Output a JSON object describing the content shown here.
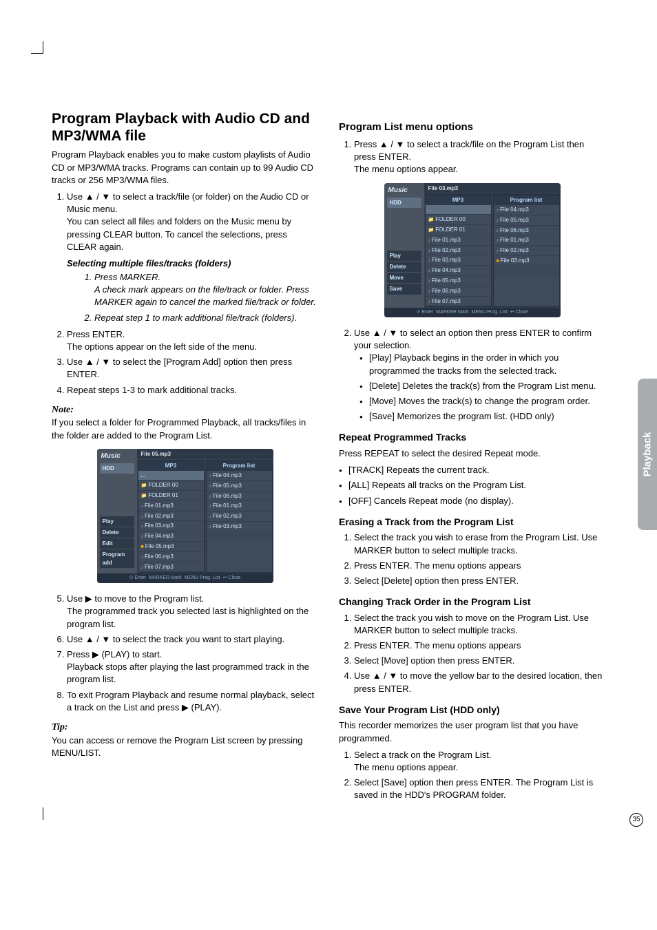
{
  "page_number": "35",
  "sidebar_tab": "Playback",
  "h1": "Program Playback with Audio CD and MP3/WMA file",
  "intro": "Program Playback enables you to make custom playlists of Audio CD or MP3/WMA tracks. Programs can contain up to 99 Audio CD tracks or 256 MP3/WMA files.",
  "left": {
    "step1a": "Use ▲ / ▼ to select a track/file (or folder) on the Audio CD or Music menu.",
    "step1b": "You can select all files and folders on the Music menu by pressing CLEAR button. To cancel the selections, press CLEAR again.",
    "sel_h": "Selecting multiple files/tracks (folders)",
    "sel1a": "Press MARKER.",
    "sel1b": "A check mark appears on the file/track or folder. Press MARKER again to cancel the marked file/track or folder.",
    "sel2": "Repeat step 1 to mark additional file/track (folders).",
    "step2a": "Press ENTER.",
    "step2b": "The options appear on the left side of the menu.",
    "step3": "Use ▲ / ▼ to select the [Program Add] option then press ENTER.",
    "step4": "Repeat steps 1-3 to mark additional tracks.",
    "note_h": "Note:",
    "note_p": "If you select a folder for Programmed Playback, all tracks/files in the folder are added to the Program List.",
    "step5a": "Use ▶ to move to the Program list.",
    "step5b": "The programmed track you selected last is highlighted on the program list.",
    "step6": "Use ▲ / ▼ to select the track you want to start playing.",
    "step7a": "Press ▶ (PLAY) to start.",
    "step7b": "Playback stops after playing the last programmed track in the program list.",
    "step8": "To exit Program Playback and resume normal playback, select a track on the List and press ▶ (PLAY).",
    "tip_h": "Tip:",
    "tip_p": "You can access or remove the Program List screen by pressing MENU/LIST."
  },
  "right": {
    "h2": "Program List menu options",
    "r1a": "Press ▲ / ▼ to select a track/file on the Program List then press ENTER.",
    "r1b": "The menu options appear.",
    "r2": "Use ▲ / ▼ to select an option then press ENTER to confirm your selection.",
    "opt_play": "[Play] Playback begins in the order in which you programmed the tracks from the selected track.",
    "opt_delete": "[Delete] Deletes the track(s) from the Program List menu.",
    "opt_move": "[Move] Moves the track(s) to change the program order.",
    "opt_save": "[Save] Memorizes the program list. (HDD only)",
    "repeat_h": "Repeat Programmed Tracks",
    "repeat_p": "Press REPEAT to select the desired Repeat mode.",
    "rep_track": "[TRACK] Repeats the current track.",
    "rep_all": "[ALL] Repeats all tracks on the Program List.",
    "rep_off": "[OFF] Cancels Repeat mode (no display).",
    "erase_h": "Erasing a Track from the Program List",
    "erase1": "Select the track you wish to erase from the Program List. Use MARKER button to select multiple tracks.",
    "erase2": "Press ENTER. The menu options appears",
    "erase3": "Select [Delete] option then press ENTER.",
    "order_h": "Changing Track Order in the Program List",
    "order1": "Select the track you wish to move on the Program List. Use MARKER button to select multiple tracks.",
    "order2": "Press ENTER. The menu options appears",
    "order3": "Select [Move] option then press ENTER.",
    "order4": "Use ▲ / ▼ to move the yellow bar to the desired location, then press ENTER.",
    "save_h": "Save Your Program List (HDD only)",
    "save_p": "This recorder memorizes the user program list that you have programmed.",
    "save1a": "Select a track on the Program List.",
    "save1b": "The menu options appear.",
    "save2": "Select [Save] option then press ENTER. The Program List is saved in the HDD's PROGRAM folder."
  },
  "shot1": {
    "title": "File 05.mp3",
    "side_title": "Music",
    "side_sub": "HDD",
    "side_btns": [
      "Play",
      "Delete",
      "Edit",
      "Program add"
    ],
    "left_h": "MP3",
    "right_h": "Program list",
    "left_rows": [
      {
        "t": "...",
        "cls": "sel"
      },
      {
        "t": "FOLDER 00",
        "cls": "folder"
      },
      {
        "t": "FOLDER 01",
        "cls": "folder"
      },
      {
        "t": "File 01.mp3",
        "cls": "file"
      },
      {
        "t": "File 02.mp3",
        "cls": "file"
      },
      {
        "t": "File 03.mp3",
        "cls": "file"
      },
      {
        "t": "File 04.mp3",
        "cls": "file"
      },
      {
        "t": "File 05.mp3",
        "cls": "mark"
      },
      {
        "t": "File 06.mp3",
        "cls": "file"
      },
      {
        "t": "File 07.mp3",
        "cls": "file"
      }
    ],
    "right_rows": [
      {
        "t": "File 04.mp3",
        "cls": "file"
      },
      {
        "t": "File 05.mp3",
        "cls": "file"
      },
      {
        "t": "File 06.mp3",
        "cls": "file"
      },
      {
        "t": "File 01.mp3",
        "cls": "file"
      },
      {
        "t": "File 02.mp3",
        "cls": "file"
      },
      {
        "t": "File 03.mp3",
        "cls": "file"
      },
      {
        "t": "",
        "cls": ""
      },
      {
        "t": "",
        "cls": ""
      },
      {
        "t": "",
        "cls": ""
      },
      {
        "t": "",
        "cls": ""
      }
    ],
    "foot": [
      "⊙ Enter",
      "MARKER Mark",
      "MENU Prog. List",
      "↩ Close"
    ]
  },
  "shot2": {
    "title": "File 03.mp3",
    "side_title": "Music",
    "side_sub": "HDD",
    "side_btns": [
      "Play",
      "Delete",
      "Move",
      "Save"
    ],
    "left_h": "MP3",
    "right_h": "Program list",
    "left_rows": [
      {
        "t": "...",
        "cls": "sel"
      },
      {
        "t": "FOLDER 00",
        "cls": "folder"
      },
      {
        "t": "FOLDER 01",
        "cls": "folder"
      },
      {
        "t": "File 01.mp3",
        "cls": "file"
      },
      {
        "t": "File 02.mp3",
        "cls": "file"
      },
      {
        "t": "File 03.mp3",
        "cls": "file"
      },
      {
        "t": "File 04.mp3",
        "cls": "file"
      },
      {
        "t": "File 05.mp3",
        "cls": "file"
      },
      {
        "t": "File 06.mp3",
        "cls": "file"
      },
      {
        "t": "File 07.mp3",
        "cls": "file"
      }
    ],
    "right_rows": [
      {
        "t": "File 04.mp3",
        "cls": "file"
      },
      {
        "t": "File 05.mp3",
        "cls": "file"
      },
      {
        "t": "File 06.mp3",
        "cls": "file"
      },
      {
        "t": "File 01.mp3",
        "cls": "file"
      },
      {
        "t": "File 02.mp3",
        "cls": "file"
      },
      {
        "t": "File 03.mp3",
        "cls": "mark"
      },
      {
        "t": "",
        "cls": ""
      },
      {
        "t": "",
        "cls": ""
      },
      {
        "t": "",
        "cls": ""
      },
      {
        "t": "",
        "cls": ""
      }
    ],
    "foot": [
      "⊙ Enter",
      "MARKER Mark",
      "MENU Prog. List",
      "↩ Close"
    ]
  }
}
